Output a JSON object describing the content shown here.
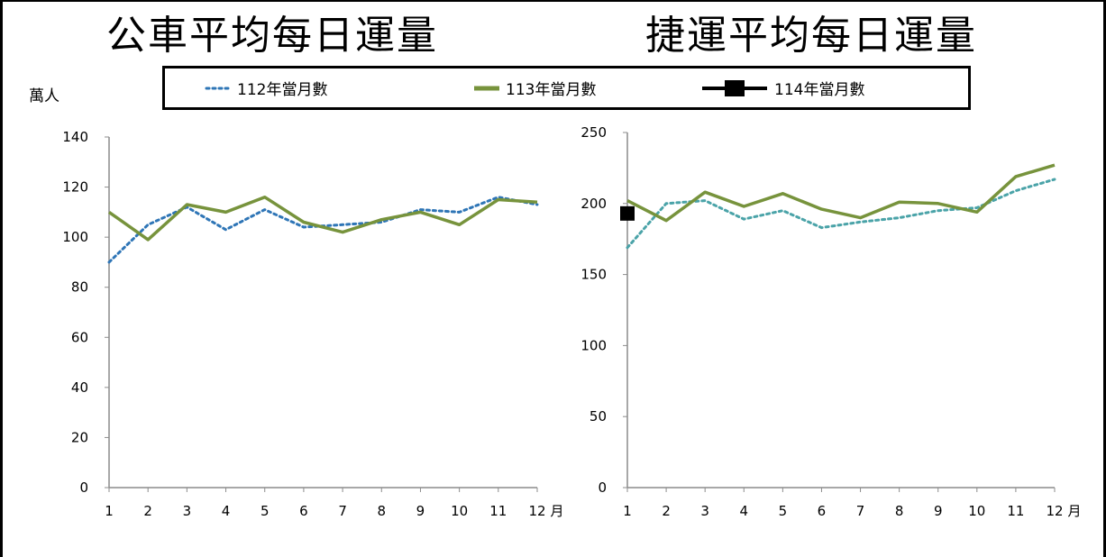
{
  "titles": {
    "bus": "公車平均每日運量",
    "mrt": "捷運平均每日運量"
  },
  "unit_label": "萬人",
  "legend": [
    {
      "label": "112年當月數",
      "color": "#2e75b6",
      "style": "dotted"
    },
    {
      "label": "113年當月數",
      "color": "#77933c",
      "style": "solid"
    },
    {
      "label": "114年當月數",
      "color": "#000000",
      "style": "marker"
    }
  ],
  "x_suffix": "月",
  "chart_data": [
    {
      "type": "line",
      "title": "公車平均每日運量",
      "ylabel": "萬人",
      "xlabel": "月",
      "categories": [
        "1",
        "2",
        "3",
        "4",
        "5",
        "6",
        "7",
        "8",
        "9",
        "10",
        "11",
        "12"
      ],
      "ylim": [
        0,
        140
      ],
      "yticks": [
        0,
        20,
        40,
        60,
        80,
        100,
        120,
        140
      ],
      "series": [
        {
          "name": "112年當月數",
          "color": "#2e75b6",
          "style": "dotted",
          "values": [
            90,
            105,
            112,
            103,
            111,
            104,
            105,
            106,
            111,
            110,
            116,
            113
          ]
        },
        {
          "name": "113年當月數",
          "color": "#77933c",
          "style": "solid",
          "values": [
            110,
            99,
            113,
            110,
            116,
            106,
            102,
            107,
            110,
            105,
            115,
            114
          ]
        },
        {
          "name": "114年當月數",
          "color": "#000000",
          "style": "marker",
          "values": [
            null,
            null,
            null,
            null,
            null,
            null,
            null,
            null,
            null,
            null,
            null,
            null
          ]
        }
      ]
    },
    {
      "type": "line",
      "title": "捷運平均每日運量",
      "xlabel": "月",
      "categories": [
        "1",
        "2",
        "3",
        "4",
        "5",
        "6",
        "7",
        "8",
        "9",
        "10",
        "11",
        "12"
      ],
      "ylim": [
        0,
        250
      ],
      "yticks": [
        0,
        50,
        100,
        150,
        200,
        250
      ],
      "series": [
        {
          "name": "112年當月數",
          "color": "#4aa3a8",
          "style": "dotted",
          "values": [
            169,
            200,
            202,
            189,
            195,
            183,
            187,
            190,
            195,
            197,
            209,
            217
          ]
        },
        {
          "name": "113年當月數",
          "color": "#77933c",
          "style": "solid",
          "values": [
            202,
            188,
            208,
            198,
            207,
            196,
            190,
            201,
            200,
            194,
            219,
            227
          ]
        },
        {
          "name": "114年當月數",
          "color": "#000000",
          "style": "marker",
          "values": [
            193,
            null,
            null,
            null,
            null,
            null,
            null,
            null,
            null,
            null,
            null,
            null
          ]
        }
      ]
    }
  ]
}
